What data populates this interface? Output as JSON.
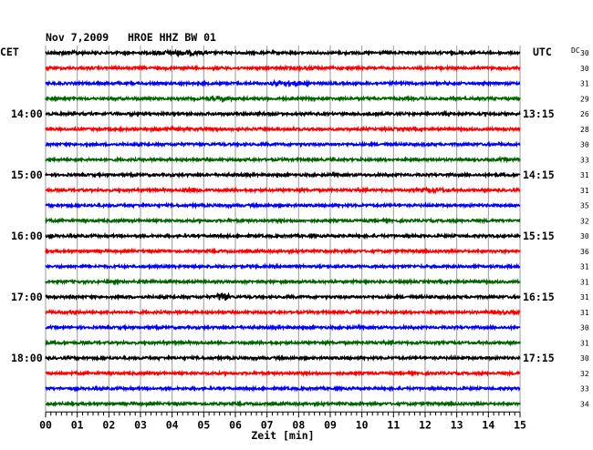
{
  "chart_data": {
    "type": "line",
    "title": "Nov 7,2009   HROE HHZ BW 01",
    "left_label": "CET",
    "right_label": "UTC",
    "dc_label": "DC",
    "xlabel": "Zeit [min]",
    "x_ticks": [
      "00",
      "01",
      "02",
      "03",
      "04",
      "05",
      "06",
      "07",
      "08",
      "09",
      "10",
      "11",
      "12",
      "13",
      "14",
      "15"
    ],
    "xlim": [
      0,
      15
    ],
    "grid": true,
    "trace_colors": [
      "#000000",
      "#ff0000",
      "#0000ff",
      "#006400"
    ],
    "hour_labels_left": [
      {
        "trace": 4,
        "text": "14:00"
      },
      {
        "trace": 8,
        "text": "15:00"
      },
      {
        "trace": 12,
        "text": "16:00"
      },
      {
        "trace": 16,
        "text": "17:00"
      },
      {
        "trace": 20,
        "text": "18:00"
      }
    ],
    "hour_labels_right": [
      {
        "trace": 4,
        "text": "13:15"
      },
      {
        "trace": 8,
        "text": "14:15"
      },
      {
        "trace": 12,
        "text": "15:15"
      },
      {
        "trace": 16,
        "text": "16:15"
      },
      {
        "trace": 20,
        "text": "17:15"
      }
    ],
    "dc_values": [
      "30",
      "30",
      "31",
      "29",
      "26",
      "28",
      "30",
      "33",
      "31",
      "31",
      "35",
      "32",
      "30",
      "36",
      "31",
      "31",
      "31",
      "31",
      "30",
      "31",
      "30",
      "32",
      "33",
      "34"
    ],
    "events": [
      {
        "trace": 0,
        "start_min": 0.2,
        "end_min": 1.2,
        "amp": 1.6
      },
      {
        "trace": 0,
        "start_min": 3.4,
        "end_min": 5.1,
        "amp": 2.2
      },
      {
        "trace": 1,
        "start_min": 7.3,
        "end_min": 8.8,
        "amp": 1.4
      },
      {
        "trace": 2,
        "start_min": 7.1,
        "end_min": 8.3,
        "amp": 2.4
      },
      {
        "trace": 3,
        "start_min": 5.1,
        "end_min": 5.9,
        "amp": 1.8
      },
      {
        "trace": 5,
        "start_min": 3.2,
        "end_min": 4.6,
        "amp": 1.5
      },
      {
        "trace": 5,
        "start_min": 10.9,
        "end_min": 11.6,
        "amp": 1.3
      },
      {
        "trace": 7,
        "start_min": 14.2,
        "end_min": 15.0,
        "amp": 1.4
      },
      {
        "trace": 9,
        "start_min": 4.3,
        "end_min": 5.0,
        "amp": 2.4
      },
      {
        "trace": 9,
        "start_min": 11.7,
        "end_min": 12.8,
        "amp": 1.8
      },
      {
        "trace": 15,
        "start_min": 2.9,
        "end_min": 3.5,
        "amp": 1.5
      },
      {
        "trace": 16,
        "start_min": 5.4,
        "end_min": 5.8,
        "amp": 4.5
      },
      {
        "trace": 16,
        "start_min": 2.1,
        "end_min": 2.7,
        "amp": 1.4
      },
      {
        "trace": 17,
        "start_min": 13.9,
        "end_min": 15.0,
        "amp": 1.5
      },
      {
        "trace": 17,
        "start_min": 0.5,
        "end_min": 1.2,
        "amp": 1.3
      }
    ]
  }
}
